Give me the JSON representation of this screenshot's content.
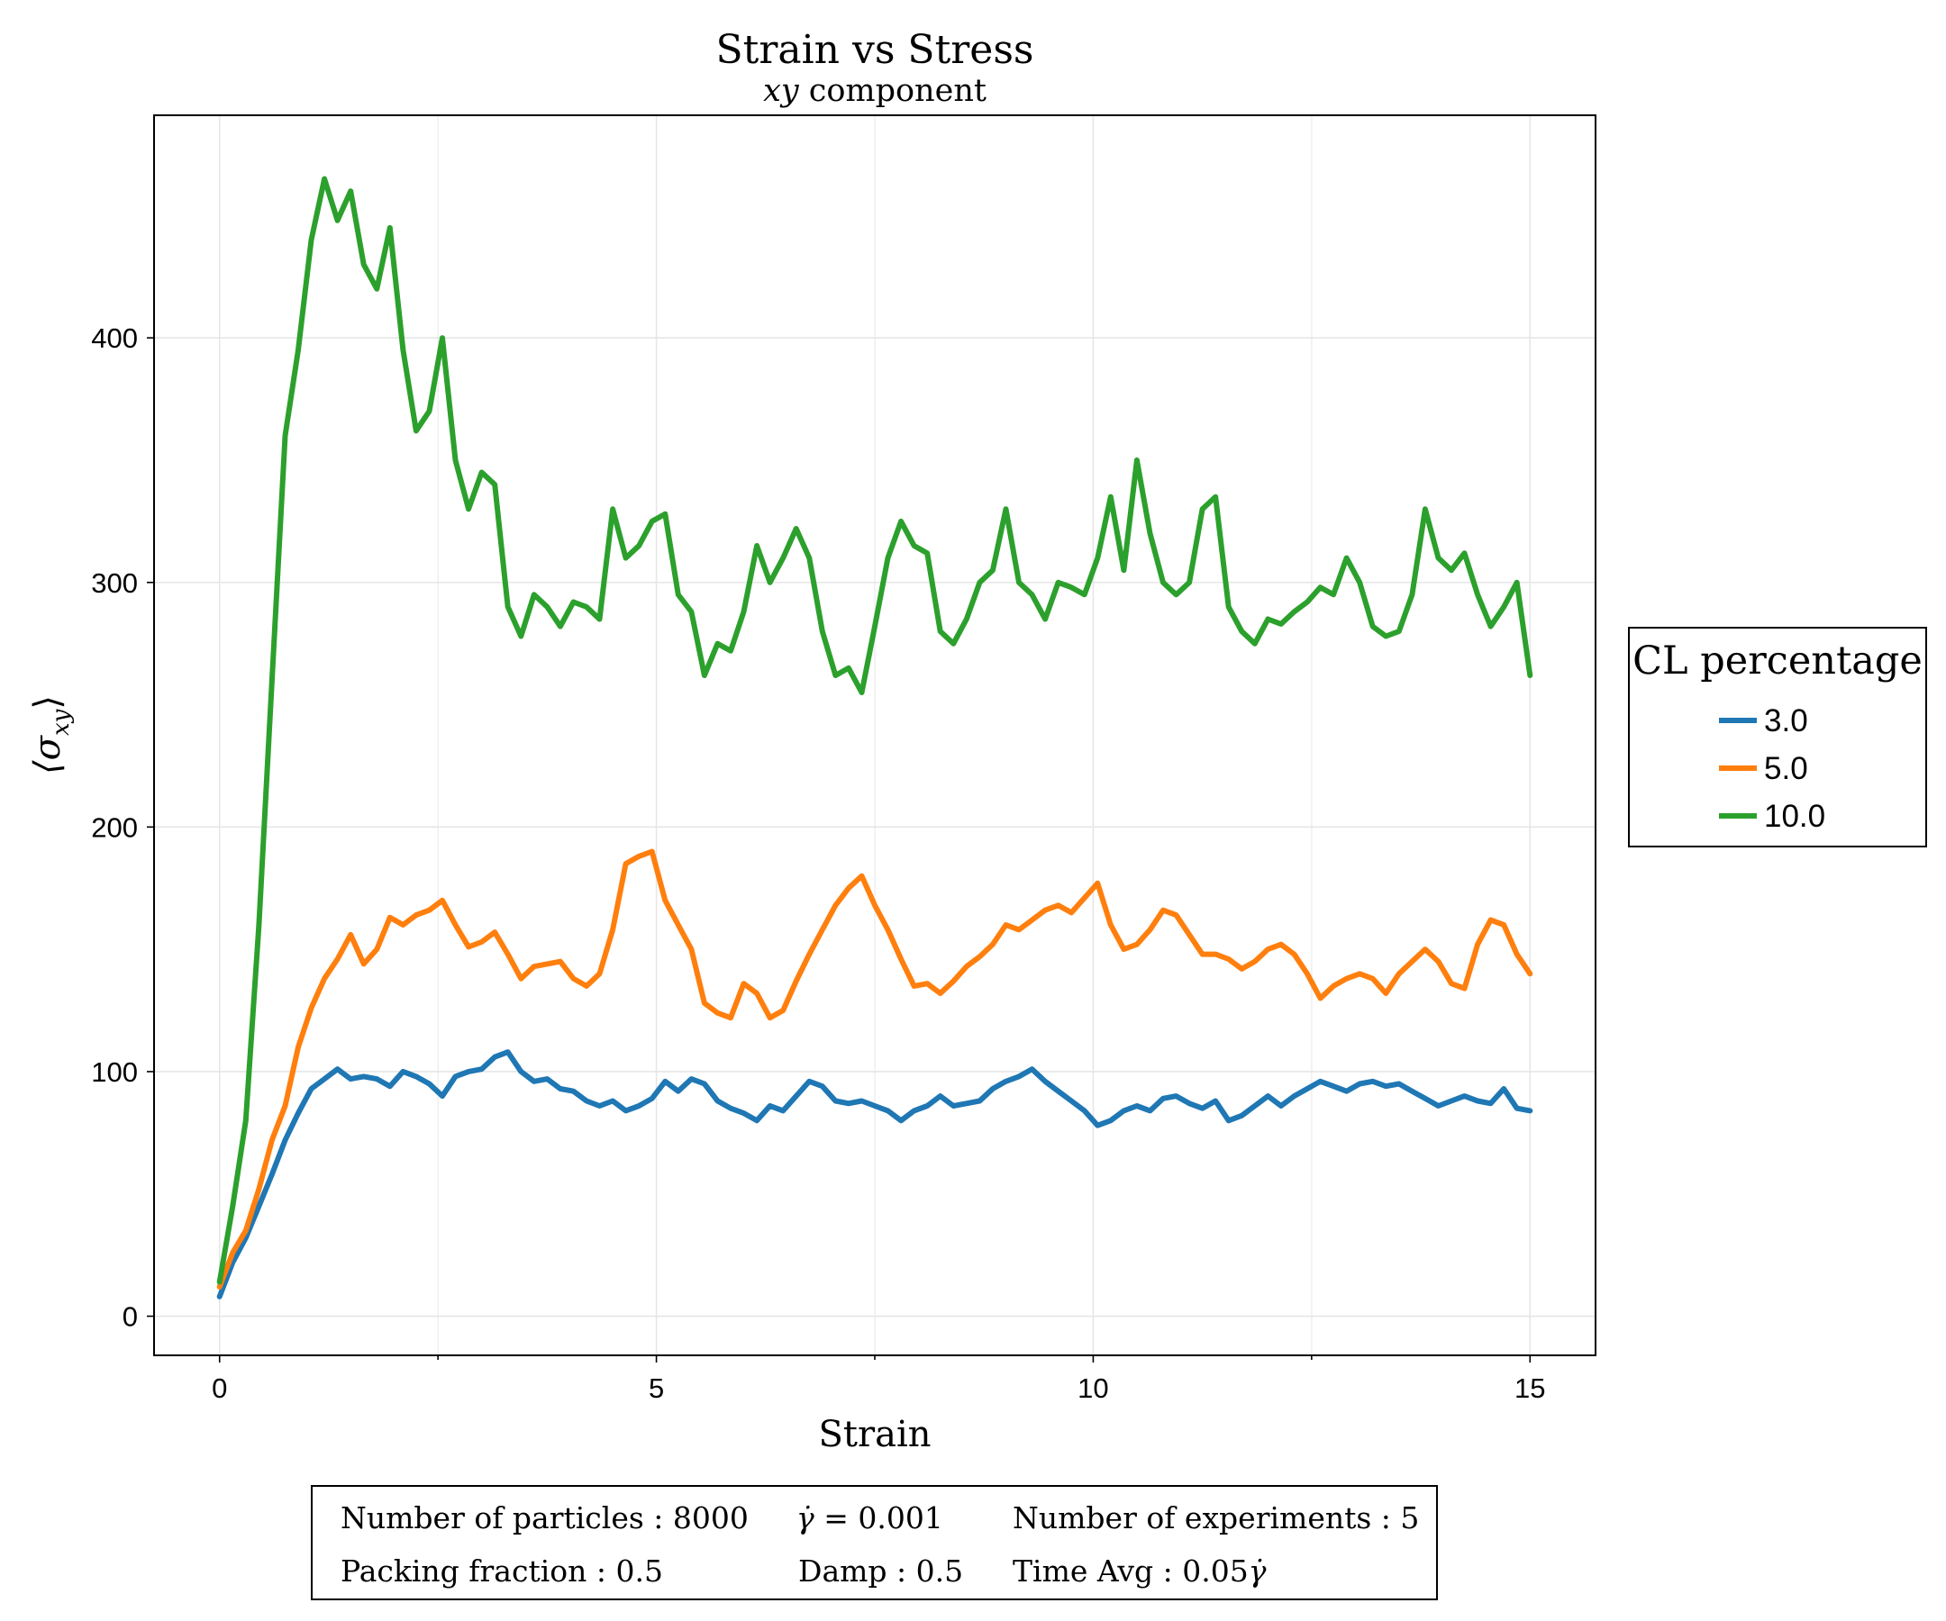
{
  "chart_data": {
    "type": "line",
    "title": "Strain vs Stress",
    "subtitle_var": "xy",
    "subtitle_text": " component",
    "xlabel": "Strain",
    "ylabel": "⟨σ",
    "ylabel_sub": "xy",
    "ylabel_close": "⟩",
    "xlim": [
      -0.75,
      15.75
    ],
    "ylim": [
      -16,
      491
    ],
    "x_ticks": [
      0,
      5,
      10,
      15
    ],
    "x_tick_labels": [
      "0",
      "5",
      "10",
      "15"
    ],
    "x_minor_ticks": [
      2.5,
      7.5,
      12.5
    ],
    "y_ticks": [
      0,
      100,
      200,
      300,
      400
    ],
    "y_tick_labels": [
      "0",
      "100",
      "200",
      "300",
      "400"
    ],
    "grid": true,
    "legend": {
      "title": "CL percentage",
      "placement": "right"
    },
    "series": [
      {
        "name": "3.0",
        "color": "#1f77b4",
        "x": [
          0,
          0.15,
          0.3,
          0.45,
          0.6,
          0.75,
          0.9,
          1.05,
          1.2,
          1.35,
          1.5,
          1.65,
          1.8,
          1.95,
          2.1,
          2.25,
          2.4,
          2.55,
          2.7,
          2.85,
          3.0,
          3.15,
          3.3,
          3.45,
          3.6,
          3.75,
          3.9,
          4.05,
          4.2,
          4.35,
          4.5,
          4.65,
          4.8,
          4.95,
          5.1,
          5.25,
          5.4,
          5.55,
          5.7,
          5.85,
          6.0,
          6.15,
          6.3,
          6.45,
          6.6,
          6.75,
          6.9,
          7.05,
          7.2,
          7.35,
          7.5,
          7.65,
          7.8,
          7.95,
          8.1,
          8.25,
          8.4,
          8.55,
          8.7,
          8.85,
          9.0,
          9.15,
          9.3,
          9.45,
          9.6,
          9.75,
          9.9,
          10.05,
          10.2,
          10.35,
          10.5,
          10.65,
          10.8,
          10.95,
          11.1,
          11.25,
          11.4,
          11.55,
          11.7,
          11.85,
          12.0,
          12.15,
          12.3,
          12.45,
          12.6,
          12.75,
          12.9,
          13.05,
          13.2,
          13.35,
          13.5,
          13.65,
          13.8,
          13.95,
          14.1,
          14.25,
          14.4,
          14.55,
          14.7,
          14.85,
          15.0
        ],
        "values": [
          8,
          22,
          32,
          45,
          58,
          72,
          83,
          93,
          97,
          101,
          97,
          98,
          97,
          94,
          100,
          98,
          95,
          90,
          98,
          100,
          101,
          106,
          108,
          100,
          96,
          97,
          93,
          92,
          88,
          86,
          88,
          84,
          86,
          89,
          96,
          92,
          97,
          95,
          88,
          85,
          83,
          80,
          86,
          84,
          90,
          96,
          94,
          88,
          87,
          88,
          86,
          84,
          80,
          84,
          86,
          90,
          86,
          87,
          88,
          93,
          96,
          98,
          101,
          96,
          92,
          88,
          84,
          78,
          80,
          84,
          86,
          84,
          89,
          90,
          87,
          85,
          88,
          80,
          82,
          86,
          90,
          86,
          90,
          93,
          96,
          94,
          92,
          95,
          96,
          94,
          95,
          92,
          89,
          86,
          88,
          90,
          88,
          87,
          93,
          85,
          84
        ]
      },
      {
        "name": "5.0",
        "color": "#ff7f0e",
        "x": [
          0,
          0.15,
          0.3,
          0.45,
          0.6,
          0.75,
          0.9,
          1.05,
          1.2,
          1.35,
          1.5,
          1.65,
          1.8,
          1.95,
          2.1,
          2.25,
          2.4,
          2.55,
          2.7,
          2.85,
          3.0,
          3.15,
          3.3,
          3.45,
          3.6,
          3.75,
          3.9,
          4.05,
          4.2,
          4.35,
          4.5,
          4.65,
          4.8,
          4.95,
          5.1,
          5.25,
          5.4,
          5.55,
          5.7,
          5.85,
          6.0,
          6.15,
          6.3,
          6.45,
          6.6,
          6.75,
          6.9,
          7.05,
          7.2,
          7.35,
          7.5,
          7.65,
          7.8,
          7.95,
          8.1,
          8.25,
          8.4,
          8.55,
          8.7,
          8.85,
          9.0,
          9.15,
          9.3,
          9.45,
          9.6,
          9.75,
          9.9,
          10.05,
          10.2,
          10.35,
          10.5,
          10.65,
          10.8,
          10.95,
          11.1,
          11.25,
          11.4,
          11.55,
          11.7,
          11.85,
          12.0,
          12.15,
          12.3,
          12.45,
          12.6,
          12.75,
          12.9,
          13.05,
          13.2,
          13.35,
          13.5,
          13.65,
          13.8,
          13.95,
          14.1,
          14.25,
          14.4,
          14.55,
          14.7,
          14.85,
          15.0
        ],
        "values": [
          12,
          26,
          35,
          52,
          72,
          86,
          110,
          126,
          138,
          146,
          156,
          144,
          150,
          163,
          160,
          164,
          166,
          170,
          160,
          151,
          153,
          157,
          148,
          138,
          143,
          144,
          145,
          138,
          135,
          140,
          158,
          185,
          188,
          190,
          170,
          160,
          150,
          128,
          124,
          122,
          136,
          132,
          122,
          125,
          137,
          148,
          158,
          168,
          175,
          180,
          168,
          158,
          146,
          135,
          136,
          132,
          137,
          143,
          147,
          152,
          160,
          158,
          162,
          166,
          168,
          165,
          171,
          177,
          160,
          150,
          152,
          158,
          166,
          164,
          156,
          148,
          148,
          146,
          142,
          145,
          150,
          152,
          148,
          140,
          130,
          135,
          138,
          140,
          138,
          132,
          140,
          145,
          150,
          145,
          136,
          134,
          152,
          162,
          160,
          148,
          140
        ]
      },
      {
        "name": "10.0",
        "color": "#2ca02c",
        "x": [
          0,
          0.15,
          0.3,
          0.45,
          0.6,
          0.75,
          0.9,
          1.05,
          1.2,
          1.35,
          1.5,
          1.65,
          1.8,
          1.95,
          2.1,
          2.25,
          2.4,
          2.55,
          2.7,
          2.85,
          3.0,
          3.15,
          3.3,
          3.45,
          3.6,
          3.75,
          3.9,
          4.05,
          4.2,
          4.35,
          4.5,
          4.65,
          4.8,
          4.95,
          5.1,
          5.25,
          5.4,
          5.55,
          5.7,
          5.85,
          6.0,
          6.15,
          6.3,
          6.45,
          6.6,
          6.75,
          6.9,
          7.05,
          7.2,
          7.35,
          7.5,
          7.65,
          7.8,
          7.95,
          8.1,
          8.25,
          8.4,
          8.55,
          8.7,
          8.85,
          9.0,
          9.15,
          9.3,
          9.45,
          9.6,
          9.75,
          9.9,
          10.05,
          10.2,
          10.35,
          10.5,
          10.65,
          10.8,
          10.95,
          11.1,
          11.25,
          11.4,
          11.55,
          11.7,
          11.85,
          12.0,
          12.15,
          12.3,
          12.45,
          12.6,
          12.75,
          12.9,
          13.05,
          13.2,
          13.35,
          13.5,
          13.65,
          13.8,
          13.95,
          14.1,
          14.25,
          14.4,
          14.55,
          14.7,
          14.85,
          15.0
        ],
        "values": [
          14,
          45,
          80,
          160,
          260,
          360,
          395,
          440,
          465,
          448,
          460,
          430,
          420,
          445,
          395,
          362,
          370,
          400,
          350,
          330,
          345,
          340,
          290,
          278,
          295,
          290,
          282,
          292,
          290,
          285,
          330,
          310,
          315,
          325,
          328,
          295,
          288,
          262,
          275,
          272,
          288,
          315,
          300,
          310,
          322,
          310,
          280,
          262,
          265,
          255,
          282,
          310,
          325,
          315,
          312,
          280,
          275,
          285,
          300,
          305,
          330,
          300,
          295,
          285,
          300,
          298,
          295,
          310,
          335,
          305,
          350,
          320,
          300,
          295,
          300,
          330,
          335,
          290,
          280,
          275,
          285,
          283,
          288,
          292,
          298,
          295,
          310,
          300,
          282,
          278,
          280,
          295,
          330,
          310,
          305,
          312,
          295,
          282,
          290,
          300,
          262
        ]
      }
    ]
  },
  "info_box": {
    "row1": [
      {
        "label": "Number of particles",
        "value": "8000"
      },
      {
        "label": "",
        "value": "0.001"
      },
      {
        "label": "Number of experiments",
        "value": "5"
      }
    ],
    "row2": [
      {
        "label": "Packing fraction",
        "value": "0.5"
      },
      {
        "label": "Damp",
        "value": "0.5"
      },
      {
        "label": "Time Avg",
        "value": "0.05"
      }
    ],
    "gamma_dot": "γ̇"
  }
}
